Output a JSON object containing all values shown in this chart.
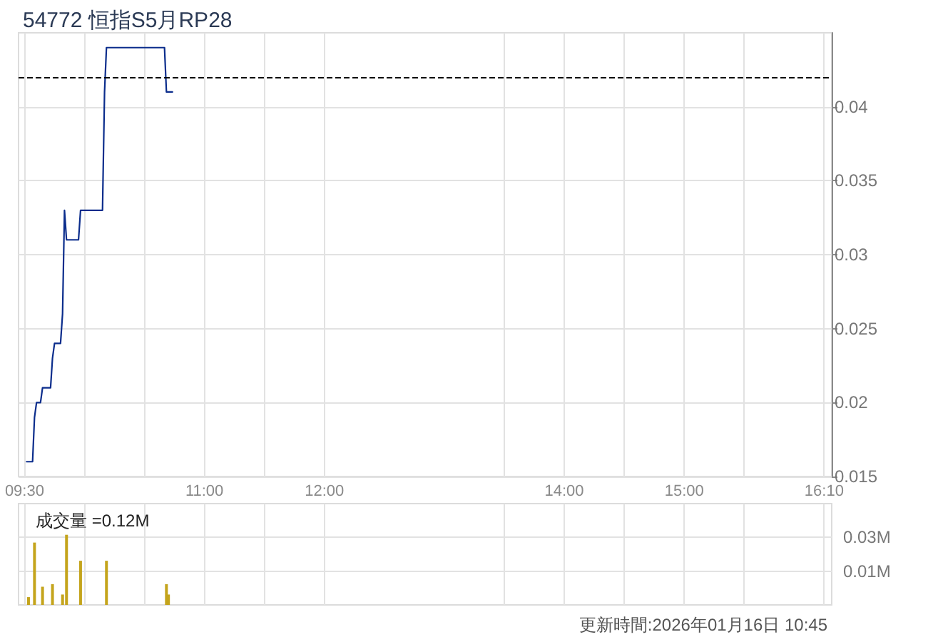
{
  "chart_data": [
    {
      "type": "line",
      "title": "54772 恒指S5月RP28",
      "x": [
        9.517,
        9.567,
        9.583,
        9.6,
        9.633,
        9.65,
        9.717,
        9.733,
        9.75,
        9.8,
        9.817,
        9.833,
        9.85,
        9.95,
        9.967,
        10.15,
        10.167,
        10.183,
        10.667,
        10.683,
        10.733
      ],
      "values": [
        0.016,
        0.016,
        0.019,
        0.02,
        0.02,
        0.021,
        0.021,
        0.023,
        0.024,
        0.024,
        0.026,
        0.033,
        0.031,
        0.031,
        0.033,
        0.033,
        0.041,
        0.044,
        0.044,
        0.041,
        0.041
      ],
      "color": "#0b2d8c",
      "xlim": [
        9.45,
        16.23
      ],
      "xticks": [
        {
          "value": 9.5,
          "label": "09:30"
        },
        {
          "value": 10,
          "label": null
        },
        {
          "value": 10.5,
          "label": null
        },
        {
          "value": 11,
          "label": "11:00"
        },
        {
          "value": 11.5,
          "label": null
        },
        {
          "value": 12,
          "label": "12:00"
        },
        {
          "value": 13.5,
          "label": null
        },
        {
          "value": 14,
          "label": "14:00"
        },
        {
          "value": 14.5,
          "label": null
        },
        {
          "value": 15,
          "label": "15:00"
        },
        {
          "value": 15.5,
          "label": null
        },
        {
          "value": 16.1667,
          "label": "16:10"
        }
      ],
      "ylim": [
        0.015,
        0.045
      ],
      "yticks": [
        0.015,
        0.02,
        0.025,
        0.03,
        0.035,
        0.04
      ],
      "grid": true,
      "ref_lines": [
        {
          "axis": "y",
          "value": 0.042,
          "color": "#000000",
          "line_style": "dashed"
        }
      ]
    },
    {
      "type": "bar",
      "title": "成交量 =0.12M",
      "x": [
        9.533,
        9.583,
        9.65,
        9.733,
        9.817,
        9.85,
        9.967,
        10.183,
        10.683,
        10.7
      ],
      "values": [
        0.003,
        0.024,
        0.007,
        0.008,
        0.004,
        0.027,
        0.017,
        0.017,
        0.008,
        0.004
      ],
      "color": "#c4a41c",
      "xlim": [
        9.45,
        16.23
      ],
      "xticks": [
        9.5,
        10,
        10.5,
        11,
        11.5,
        12,
        13.5,
        14,
        14.5,
        15,
        15.5,
        16.1667
      ],
      "ylim": [
        0,
        0.039
      ],
      "yticks": [
        {
          "value": 0.013,
          "label": "0.01M"
        },
        {
          "value": 0.026,
          "label": "0.03M"
        }
      ],
      "tick_labels": "y",
      "grid": true,
      "annotations": [
        "更新時間:2026年01月16日 10:45"
      ]
    }
  ]
}
